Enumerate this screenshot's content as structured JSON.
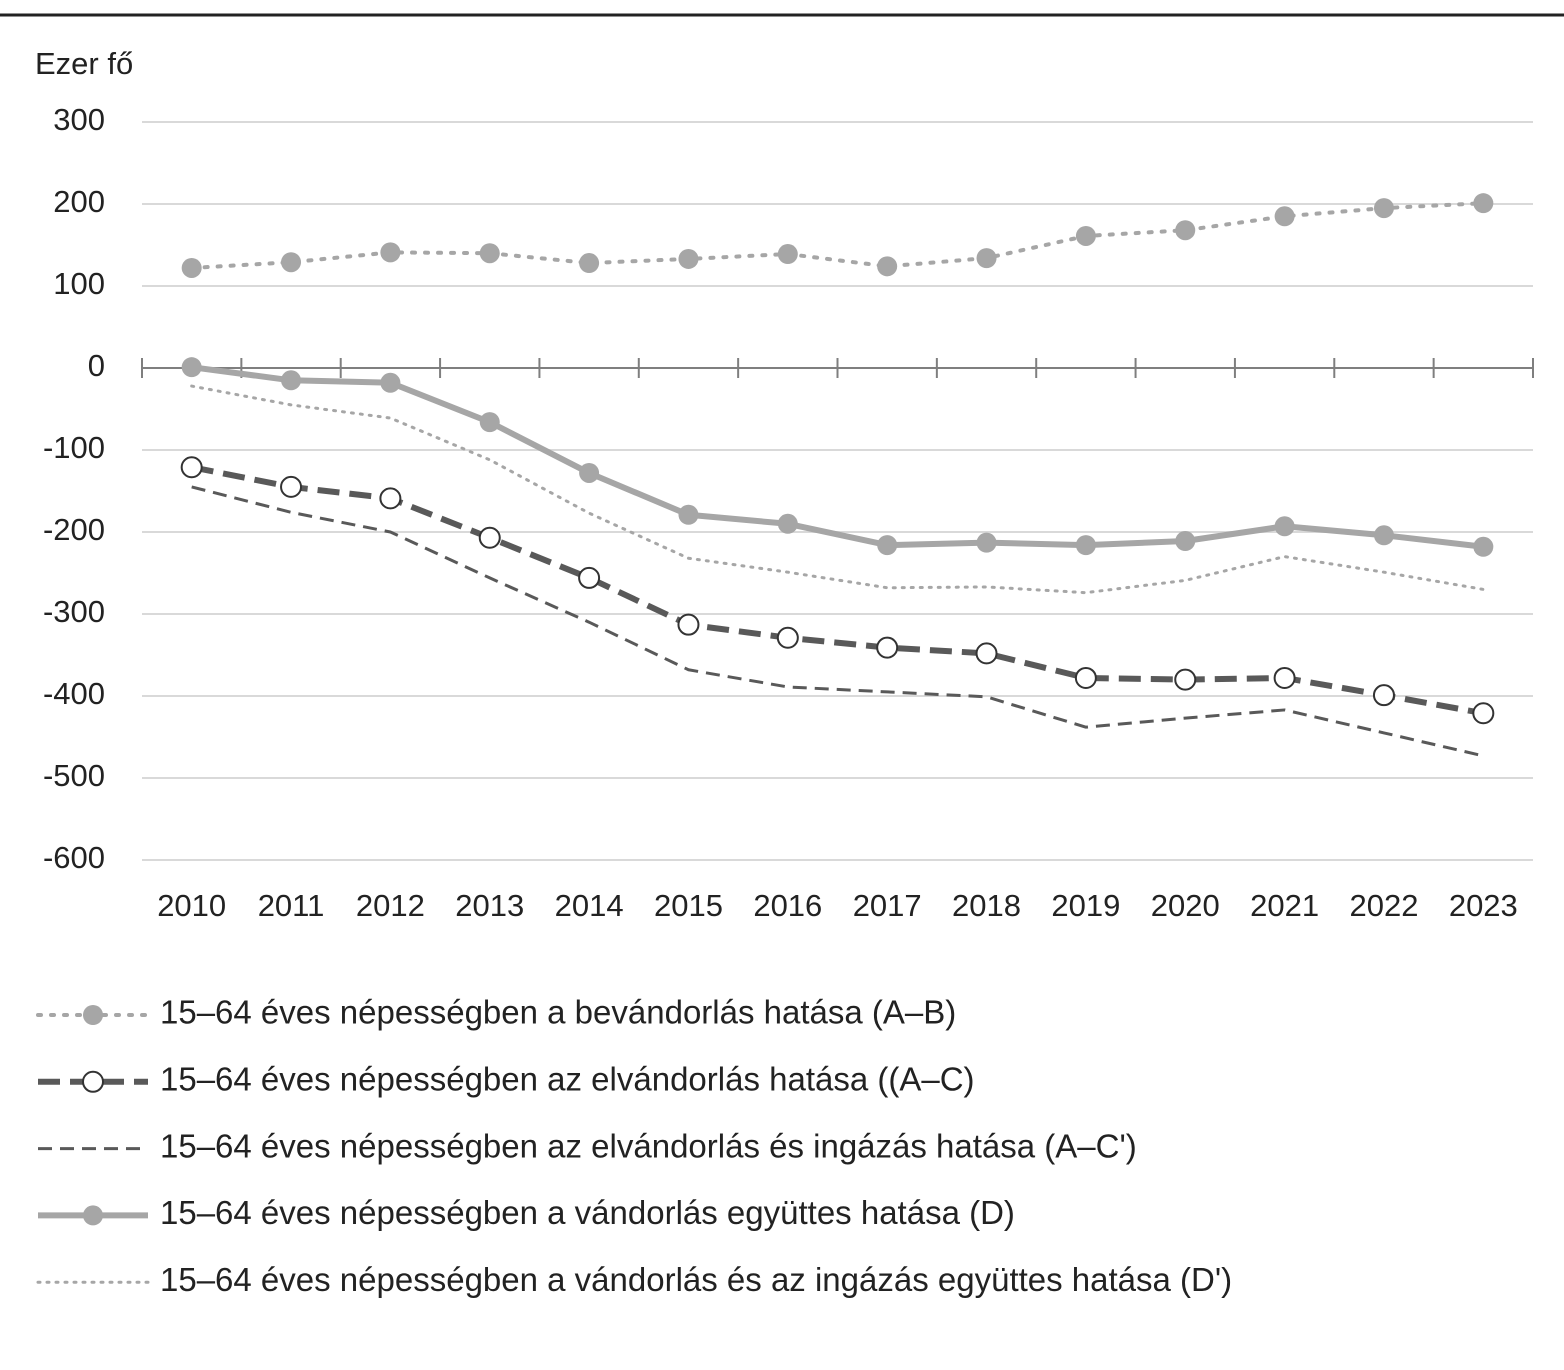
{
  "chart_data": {
    "type": "line",
    "y_label": "Ezer fő",
    "categories": [
      "2010",
      "2011",
      "2012",
      "2013",
      "2014",
      "2015",
      "2016",
      "2017",
      "2018",
      "2019",
      "2020",
      "2021",
      "2022",
      "2023"
    ],
    "ylim": [
      -600,
      300
    ],
    "yticks": [
      -600,
      -500,
      -400,
      -300,
      -200,
      -100,
      0,
      100,
      200,
      300
    ],
    "grid": true,
    "legend": "bottom",
    "series": [
      {
        "name": "15–64 éves népességben a bevándorlás hatása (A–B)",
        "color": "#a6a6a6",
        "line": "dotted",
        "width": 4,
        "marker": "filled",
        "values": [
          122,
          129,
          141,
          140,
          128,
          133,
          139,
          124,
          134,
          161,
          168,
          185,
          195,
          201
        ]
      },
      {
        "name": "15–64 éves népességben az elvándorlás hatása ((A–C)",
        "color": "#595959",
        "line": "dashed",
        "width": 6,
        "marker": "open",
        "values": [
          -121,
          -145,
          -159,
          -207,
          -256,
          -313,
          -329,
          -341,
          -348,
          -378,
          -380,
          -378,
          -399,
          -421
        ]
      },
      {
        "name": "15–64 éves népességben az elvándorlás és ingázás hatása (A–C')",
        "color": "#595959",
        "line": "dashed",
        "width": 3,
        "marker": "none",
        "values": [
          -145,
          -176,
          -200,
          -256,
          -310,
          -368,
          -389,
          -395,
          -401,
          -438,
          -427,
          -417,
          -445,
          -473
        ]
      },
      {
        "name": "15–64 éves népességben a vándorlás együttes hatása (D)",
        "color": "#a6a6a6",
        "line": "solid",
        "width": 6,
        "marker": "filled",
        "values": [
          1,
          -15,
          -18,
          -66,
          -128,
          -179,
          -190,
          -216,
          -213,
          -216,
          -211,
          -193,
          -204,
          -218
        ]
      },
      {
        "name": "15–64 éves népességben a vándorlás és az ingázás együttes hatása (D')",
        "color": "#a6a6a6",
        "line": "dotted",
        "width": 3,
        "marker": "none",
        "values": [
          -22,
          -45,
          -61,
          -112,
          -177,
          -232,
          -249,
          -268,
          -267,
          -274,
          -259,
          -230,
          -249,
          -270
        ]
      }
    ]
  }
}
